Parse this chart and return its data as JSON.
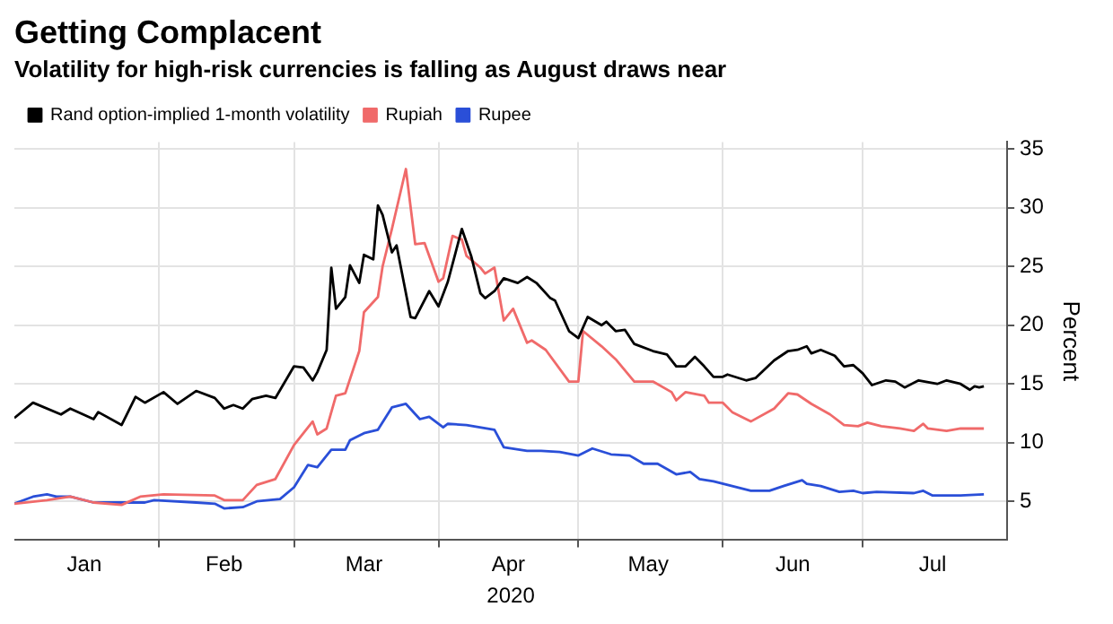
{
  "chart_data": {
    "type": "line",
    "title": "Getting Complacent",
    "subtitle": "Volatility for high-risk currencies is falling as August draws near",
    "xlabel": "2020",
    "ylabel": "Percent",
    "legend": "top left",
    "grid": true,
    "marker": "none",
    "line_style": "solid",
    "xlim": [
      "2020-01-01",
      "2020-08-01"
    ],
    "xticks": [
      {
        "value": "2020-01-16",
        "label": "Jan"
      },
      {
        "value": "2020-02-01",
        "label": null
      },
      {
        "value": "2020-02-15",
        "label": "Feb"
      },
      {
        "value": "2020-03-01",
        "label": null
      },
      {
        "value": "2020-03-16",
        "label": "Mar"
      },
      {
        "value": "2020-04-01",
        "label": null
      },
      {
        "value": "2020-04-16",
        "label": "Apr"
      },
      {
        "value": "2020-05-01",
        "label": null
      },
      {
        "value": "2020-05-16",
        "label": "May"
      },
      {
        "value": "2020-06-01",
        "label": null
      },
      {
        "value": "2020-06-16",
        "label": "Jun"
      },
      {
        "value": "2020-07-01",
        "label": null
      },
      {
        "value": "2020-07-16",
        "label": "Jul"
      }
    ],
    "ylim": [
      1.7,
      35.6
    ],
    "yticks": [
      5,
      10,
      15,
      20,
      25,
      30,
      35
    ],
    "series": [
      {
        "name": "Rand option-implied 1-month volatility",
        "color": "#000000",
        "x": [
          "2020-01-01",
          "2020-01-05",
          "2020-01-11",
          "2020-01-13",
          "2020-01-18",
          "2020-01-19",
          "2020-01-24",
          "2020-01-27",
          "2020-01-29",
          "2020-02-02",
          "2020-02-05",
          "2020-02-09",
          "2020-02-13",
          "2020-02-15",
          "2020-02-17",
          "2020-02-19",
          "2020-02-21",
          "2020-02-24",
          "2020-02-26",
          "2020-03-01",
          "2020-03-03",
          "2020-03-05",
          "2020-03-06",
          "2020-03-08",
          "2020-03-09",
          "2020-03-10",
          "2020-03-12",
          "2020-03-13",
          "2020-03-15",
          "2020-03-16",
          "2020-03-18",
          "2020-03-19",
          "2020-03-20",
          "2020-03-22",
          "2020-03-23",
          "2020-03-26",
          "2020-03-27",
          "2020-03-30",
          "2020-04-01",
          "2020-04-03",
          "2020-04-06",
          "2020-04-08",
          "2020-04-10",
          "2020-04-11",
          "2020-04-13",
          "2020-04-15",
          "2020-04-18",
          "2020-04-20",
          "2020-04-22",
          "2020-04-25",
          "2020-04-26",
          "2020-04-29",
          "2020-05-01",
          "2020-05-03",
          "2020-05-06",
          "2020-05-07",
          "2020-05-09",
          "2020-05-11",
          "2020-05-13",
          "2020-05-17",
          "2020-05-20",
          "2020-05-22",
          "2020-05-24",
          "2020-05-26",
          "2020-05-28",
          "2020-05-30",
          "2020-06-01",
          "2020-06-02",
          "2020-06-06",
          "2020-06-08",
          "2020-06-12",
          "2020-06-15",
          "2020-06-17",
          "2020-06-19",
          "2020-06-20",
          "2020-06-22",
          "2020-06-25",
          "2020-06-27",
          "2020-06-29",
          "2020-07-01",
          "2020-07-03",
          "2020-07-06",
          "2020-07-08",
          "2020-07-10",
          "2020-07-13",
          "2020-07-17",
          "2020-07-19",
          "2020-07-22",
          "2020-07-24",
          "2020-07-25",
          "2020-07-26",
          "2020-07-27"
        ],
        "values": [
          12.1,
          13.4,
          12.4,
          12.9,
          12.0,
          12.6,
          11.5,
          13.9,
          13.4,
          14.3,
          13.3,
          14.4,
          13.8,
          12.9,
          13.2,
          12.9,
          13.7,
          14.0,
          13.8,
          16.5,
          16.4,
          15.3,
          16.0,
          17.9,
          24.9,
          21.4,
          22.4,
          25.1,
          23.6,
          26.0,
          25.6,
          30.2,
          29.4,
          26.2,
          26.8,
          20.7,
          20.6,
          22.9,
          21.6,
          23.7,
          28.2,
          25.9,
          22.7,
          22.3,
          22.9,
          24.0,
          23.6,
          24.1,
          23.6,
          22.3,
          22.1,
          19.5,
          18.9,
          20.7,
          20.0,
          20.3,
          19.5,
          19.6,
          18.4,
          17.8,
          17.5,
          16.5,
          16.5,
          17.3,
          16.5,
          15.6,
          15.6,
          15.8,
          15.3,
          15.5,
          17.0,
          17.8,
          17.9,
          18.2,
          17.6,
          17.9,
          17.4,
          16.5,
          16.6,
          15.9,
          14.9,
          15.3,
          15.2,
          14.7,
          15.3,
          15.0,
          15.3,
          15.0,
          14.5,
          14.8,
          14.7,
          14.8
        ]
      },
      {
        "name": "Rupiah",
        "color": "#f06a6a",
        "x": [
          "2020-01-01",
          "2020-01-08",
          "2020-01-13",
          "2020-01-18",
          "2020-01-24",
          "2020-01-28",
          "2020-02-02",
          "2020-02-13",
          "2020-02-15",
          "2020-02-19",
          "2020-02-22",
          "2020-02-26",
          "2020-03-01",
          "2020-03-05",
          "2020-03-06",
          "2020-03-08",
          "2020-03-10",
          "2020-03-12",
          "2020-03-15",
          "2020-03-16",
          "2020-03-19",
          "2020-03-20",
          "2020-03-22",
          "2020-03-25",
          "2020-03-27",
          "2020-03-29",
          "2020-04-01",
          "2020-04-02",
          "2020-04-04",
          "2020-04-06",
          "2020-04-07",
          "2020-04-10",
          "2020-04-11",
          "2020-04-13",
          "2020-04-15",
          "2020-04-17",
          "2020-04-20",
          "2020-04-21",
          "2020-04-24",
          "2020-04-29",
          "2020-05-01",
          "2020-05-02",
          "2020-05-06",
          "2020-05-09",
          "2020-05-13",
          "2020-05-17",
          "2020-05-21",
          "2020-05-22",
          "2020-05-24",
          "2020-05-28",
          "2020-05-29",
          "2020-06-01",
          "2020-06-03",
          "2020-06-06",
          "2020-06-07",
          "2020-06-12",
          "2020-06-15",
          "2020-06-17",
          "2020-06-20",
          "2020-06-24",
          "2020-06-27",
          "2020-06-30",
          "2020-07-02",
          "2020-07-05",
          "2020-07-09",
          "2020-07-12",
          "2020-07-14",
          "2020-07-15",
          "2020-07-19",
          "2020-07-22",
          "2020-07-27"
        ],
        "values": [
          4.8,
          5.1,
          5.4,
          4.9,
          4.7,
          5.4,
          5.6,
          5.5,
          5.1,
          5.1,
          6.4,
          6.9,
          9.8,
          11.8,
          10.7,
          11.2,
          14.0,
          14.2,
          17.8,
          21.1,
          22.4,
          25.0,
          28.2,
          33.3,
          26.9,
          27.0,
          23.7,
          24.0,
          27.6,
          27.3,
          25.9,
          24.9,
          24.4,
          24.9,
          20.4,
          21.4,
          18.5,
          18.7,
          17.9,
          15.2,
          15.2,
          19.5,
          18.2,
          17.1,
          15.2,
          15.2,
          14.3,
          13.6,
          14.3,
          14.0,
          13.4,
          13.4,
          12.6,
          12.0,
          11.8,
          12.9,
          14.2,
          14.1,
          13.3,
          12.4,
          11.5,
          11.4,
          11.7,
          11.4,
          11.2,
          11.0,
          11.6,
          11.2,
          11.0,
          11.2,
          11.2
        ]
      },
      {
        "name": "Rupee",
        "color": "#2a4fd8",
        "x": [
          "2020-01-01",
          "2020-01-05",
          "2020-01-08",
          "2020-01-10",
          "2020-01-13",
          "2020-01-18",
          "2020-01-26",
          "2020-01-29",
          "2020-01-31",
          "2020-02-09",
          "2020-02-13",
          "2020-02-15",
          "2020-02-19",
          "2020-02-22",
          "2020-02-27",
          "2020-03-01",
          "2020-03-04",
          "2020-03-06",
          "2020-03-09",
          "2020-03-12",
          "2020-03-13",
          "2020-03-16",
          "2020-03-19",
          "2020-03-22",
          "2020-03-25",
          "2020-03-28",
          "2020-03-30",
          "2020-04-02",
          "2020-04-03",
          "2020-04-07",
          "2020-04-13",
          "2020-04-15",
          "2020-04-20",
          "2020-04-23",
          "2020-04-27",
          "2020-05-01",
          "2020-05-04",
          "2020-05-08",
          "2020-05-12",
          "2020-05-15",
          "2020-05-18",
          "2020-05-22",
          "2020-05-25",
          "2020-05-27",
          "2020-05-30",
          "2020-06-03",
          "2020-06-07",
          "2020-06-11",
          "2020-06-14",
          "2020-06-18",
          "2020-06-19",
          "2020-06-22",
          "2020-06-26",
          "2020-06-29",
          "2020-07-01",
          "2020-07-04",
          "2020-07-12",
          "2020-07-14",
          "2020-07-16",
          "2020-07-22",
          "2020-07-27"
        ],
        "values": [
          4.8,
          5.4,
          5.6,
          5.4,
          5.4,
          4.9,
          4.9,
          4.9,
          5.1,
          4.9,
          4.8,
          4.4,
          4.5,
          5.0,
          5.2,
          6.2,
          8.1,
          7.9,
          9.4,
          9.4,
          10.2,
          10.8,
          11.1,
          13.0,
          13.3,
          12.0,
          12.2,
          11.3,
          11.6,
          11.5,
          11.1,
          9.6,
          9.3,
          9.3,
          9.2,
          8.9,
          9.5,
          9.0,
          8.9,
          8.2,
          8.2,
          7.3,
          7.5,
          6.9,
          6.7,
          6.3,
          5.9,
          5.9,
          6.3,
          6.8,
          6.5,
          6.3,
          5.8,
          5.9,
          5.7,
          5.8,
          5.7,
          5.9,
          5.5,
          5.5,
          5.6
        ]
      }
    ]
  }
}
